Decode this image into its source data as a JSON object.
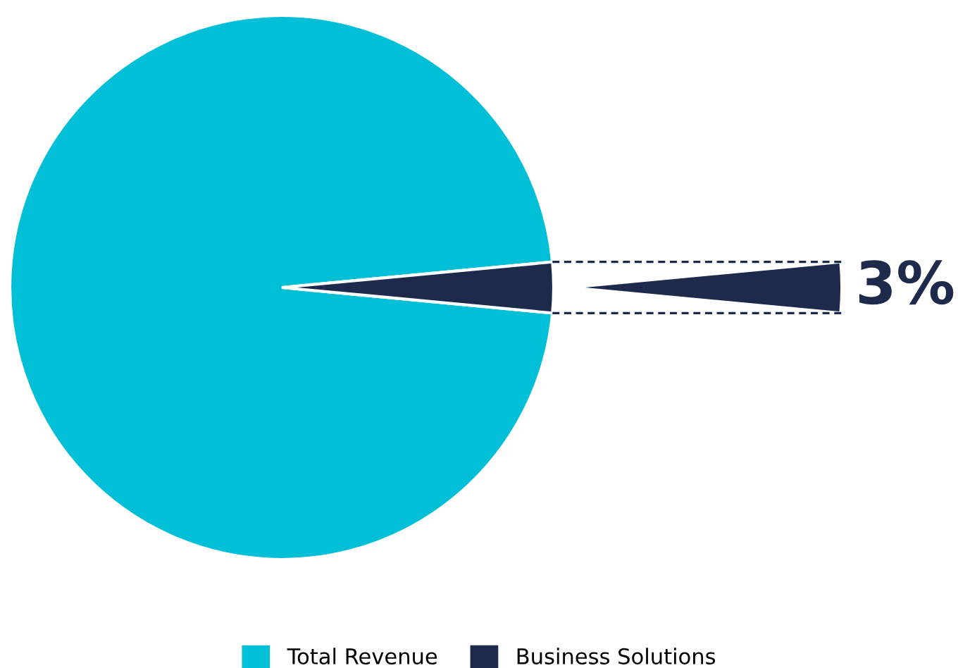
{
  "chart_data": {
    "type": "pie",
    "categories": [
      "Total Revenue",
      "Business Solutions"
    ],
    "values": [
      97,
      3
    ],
    "colors": [
      "#00bfd6",
      "#1e2a4b"
    ],
    "value_labels": [
      null,
      "3%"
    ],
    "legend": "bottom"
  }
}
